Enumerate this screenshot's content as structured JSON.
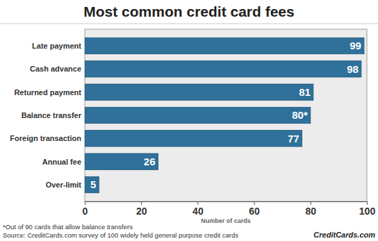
{
  "chart_data": {
    "type": "bar",
    "orientation": "horizontal",
    "title": "Most common credit card fees",
    "x_label": "Number of cards",
    "categories": [
      "Late payment",
      "Cash advance",
      "Returned payment",
      "Balance transfer",
      "Foreign transaction",
      "Annual fee",
      "Over-limit"
    ],
    "values": [
      99,
      98,
      81,
      80,
      77,
      26,
      5
    ],
    "value_labels": [
      "99",
      "98",
      "81",
      "80*",
      "77",
      "26",
      "5"
    ],
    "data_labels": true,
    "color": "#2f719a",
    "xlim": [
      0,
      100
    ],
    "xticks": [
      0,
      20,
      40,
      60,
      80,
      100
    ],
    "grid": false,
    "annotations": [
      "*Out of 90 cards that allow balance transfers",
      "Source: CreditCards.com survey of 100 widely held general purpose credit cards",
      "CreditCards.com"
    ]
  }
}
